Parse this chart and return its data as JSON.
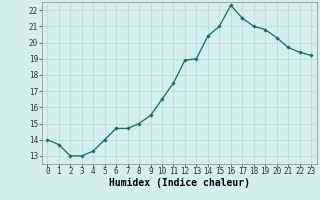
{
  "x": [
    0,
    1,
    2,
    3,
    4,
    5,
    6,
    7,
    8,
    9,
    10,
    11,
    12,
    13,
    14,
    15,
    16,
    17,
    18,
    19,
    20,
    21,
    22,
    23
  ],
  "y": [
    14.0,
    13.7,
    13.0,
    13.0,
    13.3,
    14.0,
    14.7,
    14.7,
    15.0,
    15.5,
    16.5,
    17.5,
    18.9,
    19.0,
    20.4,
    21.0,
    22.3,
    21.5,
    21.0,
    20.8,
    20.3,
    19.7,
    19.4,
    19.2
  ],
  "line_color": "#1a6b5a",
  "marker": "D",
  "marker_size": 1.8,
  "linewidth": 0.9,
  "bg_color": "#d4f0ec",
  "grid_color": "#b8d8d4",
  "xlabel": "Humidex (Indice chaleur)",
  "xlim": [
    -0.5,
    23.5
  ],
  "ylim": [
    12.5,
    22.5
  ],
  "xticks": [
    0,
    1,
    2,
    3,
    4,
    5,
    6,
    7,
    8,
    9,
    10,
    11,
    12,
    13,
    14,
    15,
    16,
    17,
    18,
    19,
    20,
    21,
    22,
    23
  ],
  "yticks": [
    13,
    14,
    15,
    16,
    17,
    18,
    19,
    20,
    21,
    22
  ],
  "tick_fontsize": 5.5,
  "xlabel_fontsize": 7.0
}
